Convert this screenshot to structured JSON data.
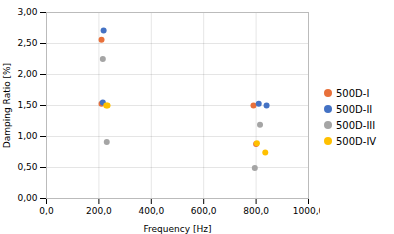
{
  "chart_data": {
    "type": "scatter",
    "xlabel": "Frequency [Hz]",
    "ylabel": "Damping Ratio [%]",
    "series": [
      {
        "name": "500D-I",
        "color": "#E8703A",
        "marker": "circle",
        "values": [
          [
            210,
            2.56
          ],
          [
            210,
            1.53
          ],
          [
            790,
            1.5
          ],
          [
            800,
            0.88
          ]
        ]
      },
      {
        "name": "500D-II",
        "color": "#4472C4",
        "marker": "circle",
        "values": [
          [
            218,
            2.71
          ],
          [
            215,
            1.55
          ],
          [
            810,
            1.53
          ],
          [
            840,
            1.5
          ]
        ]
      },
      {
        "name": "500D-III",
        "color": "#A5A5A5",
        "marker": "circle",
        "values": [
          [
            215,
            2.25
          ],
          [
            230,
            0.91
          ],
          [
            795,
            0.49
          ],
          [
            815,
            1.19
          ]
        ]
      },
      {
        "name": "500D-IV",
        "color": "#FFC000",
        "marker": "circle",
        "values": [
          [
            228,
            1.5
          ],
          [
            233,
            1.5
          ],
          [
            803,
            0.89
          ],
          [
            835,
            0.74
          ]
        ]
      }
    ],
    "xlim": [
      0,
      1000
    ],
    "ylim": [
      0,
      3.0
    ],
    "xticks": [
      {
        "value": 0,
        "label": "0,0"
      },
      {
        "value": 200,
        "label": "200,0"
      },
      {
        "value": 400,
        "label": "400,0"
      },
      {
        "value": 600,
        "label": "600,0"
      },
      {
        "value": 800,
        "label": "800,0"
      },
      {
        "value": 1000,
        "label": "1000,0"
      }
    ],
    "yticks": [
      {
        "value": 0.0,
        "label": "0,00"
      },
      {
        "value": 0.5,
        "label": "0,50"
      },
      {
        "value": 1.0,
        "label": "1,00"
      },
      {
        "value": 1.5,
        "label": "1,50"
      },
      {
        "value": 2.0,
        "label": "2,00"
      },
      {
        "value": 2.5,
        "label": "2,50"
      },
      {
        "value": 3.0,
        "label": "3,00"
      }
    ],
    "grid": true,
    "legend": "right"
  }
}
